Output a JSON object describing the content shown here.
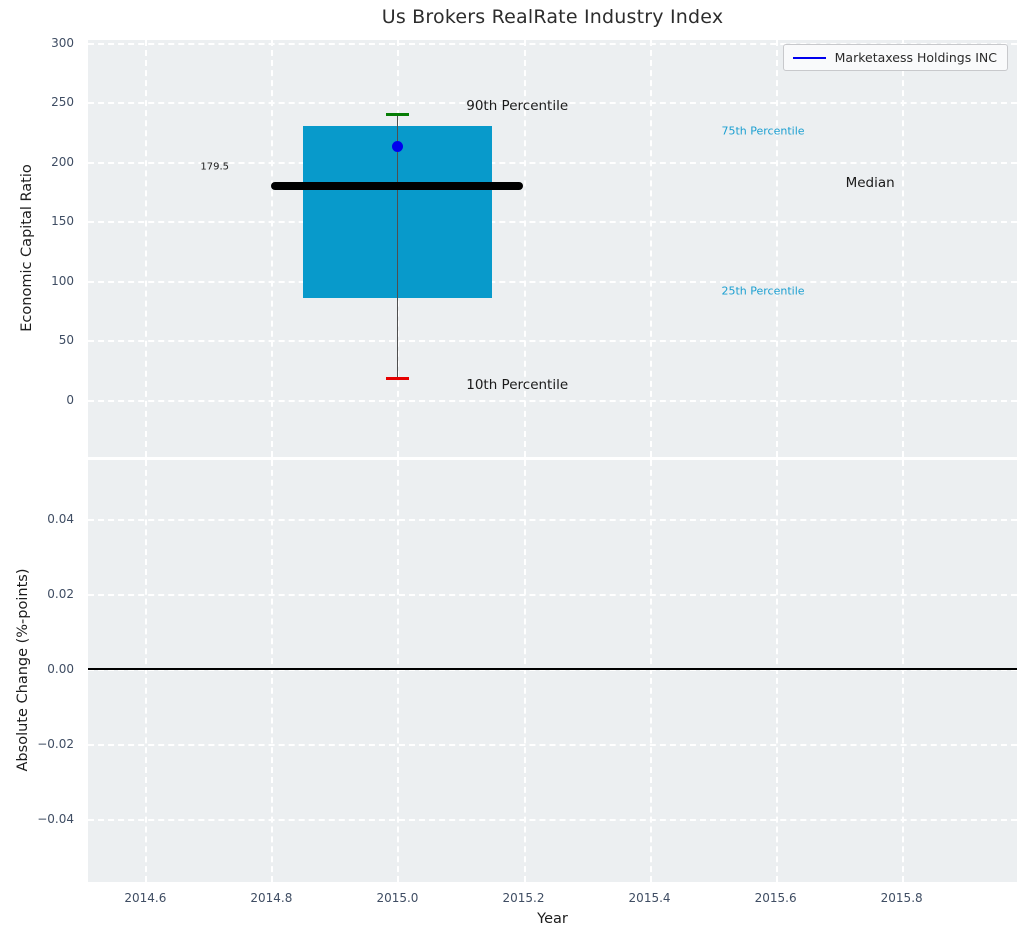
{
  "title": "Us Brokers RealRate Industry Index",
  "legend": {
    "label": "Marketaxess Holdings INC"
  },
  "axes": {
    "x": {
      "label": "Year",
      "lim": [
        2014.509,
        2015.983
      ],
      "ticks": [
        {
          "label": "2014.6",
          "value": 2014.6
        },
        {
          "label": "2014.8",
          "value": 2014.8
        },
        {
          "label": "2015.0",
          "value": 2015.0
        },
        {
          "label": "2015.2",
          "value": 2015.2
        },
        {
          "label": "2015.4",
          "value": 2015.4
        },
        {
          "label": "2015.6",
          "value": 2015.6
        },
        {
          "label": "2015.8",
          "value": 2015.8
        }
      ]
    },
    "y_top": {
      "label": "Economic Capital Ratio",
      "lim": [
        -47.9,
        302.5
      ],
      "ticks": [
        {
          "label": "300",
          "value": 300
        },
        {
          "label": "250",
          "value": 250
        },
        {
          "label": "200",
          "value": 200
        },
        {
          "label": "150",
          "value": 150
        },
        {
          "label": "100",
          "value": 100
        },
        {
          "label": "50",
          "value": 50
        },
        {
          "label": "0",
          "value": 0
        }
      ]
    },
    "y_bottom": {
      "label": "Absolute Change (%-points)",
      "lim": [
        -0.0569,
        0.0556
      ],
      "ticks": [
        {
          "label": "0.04",
          "value": 0.04
        },
        {
          "label": "0.02",
          "value": 0.02
        },
        {
          "label": "0.00",
          "value": 0.0
        },
        {
          "label": "−0.02",
          "value": -0.02
        },
        {
          "label": "−0.04",
          "value": -0.04
        }
      ]
    }
  },
  "chart_data": {
    "type": "box",
    "title": "Us Brokers RealRate Industry Index",
    "xlabel": "Year",
    "x_ticks": [
      2014.6,
      2014.8,
      2015.0,
      2015.2,
      2015.4,
      2015.6,
      2015.8
    ],
    "xlim": [
      2014.509,
      2015.983
    ],
    "legend": {
      "entries": [
        "Marketaxess Holdings INC"
      ],
      "position": "upper right"
    },
    "grid": true,
    "top_panel": {
      "ylabel": "Economic Capital Ratio",
      "ylim": [
        -47.9,
        302.5
      ],
      "yticks": [
        0,
        50,
        100,
        150,
        200,
        250,
        300
      ],
      "box": {
        "x_center": 2015.0,
        "x_range": [
          2014.85,
          2015.15
        ],
        "median_x_range": [
          2014.8,
          2015.2
        ],
        "p10": 18,
        "p25": 86,
        "median": 179.5,
        "p75": 230,
        "p90": 240,
        "company_value": 213
      },
      "annotations": [
        {
          "text": "179.5",
          "x": 2014.71,
          "y": 196,
          "color": "text_dark",
          "size": 10
        },
        {
          "text": "90th Percentile",
          "x": 2015.19,
          "y": 247,
          "color": "text_dark",
          "size": 13.5
        },
        {
          "text": "75th Percentile",
          "x": 2015.58,
          "y": 226,
          "color": "cyan_text",
          "size": 11
        },
        {
          "text": "Median",
          "x": 2015.75,
          "y": 182,
          "color": "text_dark",
          "size": 13.5
        },
        {
          "text": "25th Percentile",
          "x": 2015.58,
          "y": 92,
          "color": "cyan_text",
          "size": 11
        },
        {
          "text": "10th Percentile",
          "x": 2015.19,
          "y": 13,
          "color": "text_dark",
          "size": 13.5
        }
      ]
    },
    "bottom_panel": {
      "ylabel": "Absolute Change (%-points)",
      "ylim": [
        -0.0569,
        0.0556
      ],
      "yticks": [
        -0.04,
        -0.02,
        0.0,
        0.02,
        0.04
      ],
      "zero_line": 0.0,
      "series": [
        {
          "name": "Marketaxess Holdings INC",
          "x": [],
          "y": []
        }
      ]
    }
  },
  "colors": {
    "plot_bg": "#eceff1",
    "grid": "#ffffff",
    "box_fill": "#089acb",
    "median": "#000000",
    "p90_cap": "#067d06",
    "p10_cap": "#e60000",
    "whisker": "#4f4f4f",
    "company_dot": "#0000ee",
    "legend_line": "#0000ee",
    "cyan_text": "#1b9fd1",
    "tick_text": "#3f4d63",
    "text_dark": "#1a1a1a"
  }
}
